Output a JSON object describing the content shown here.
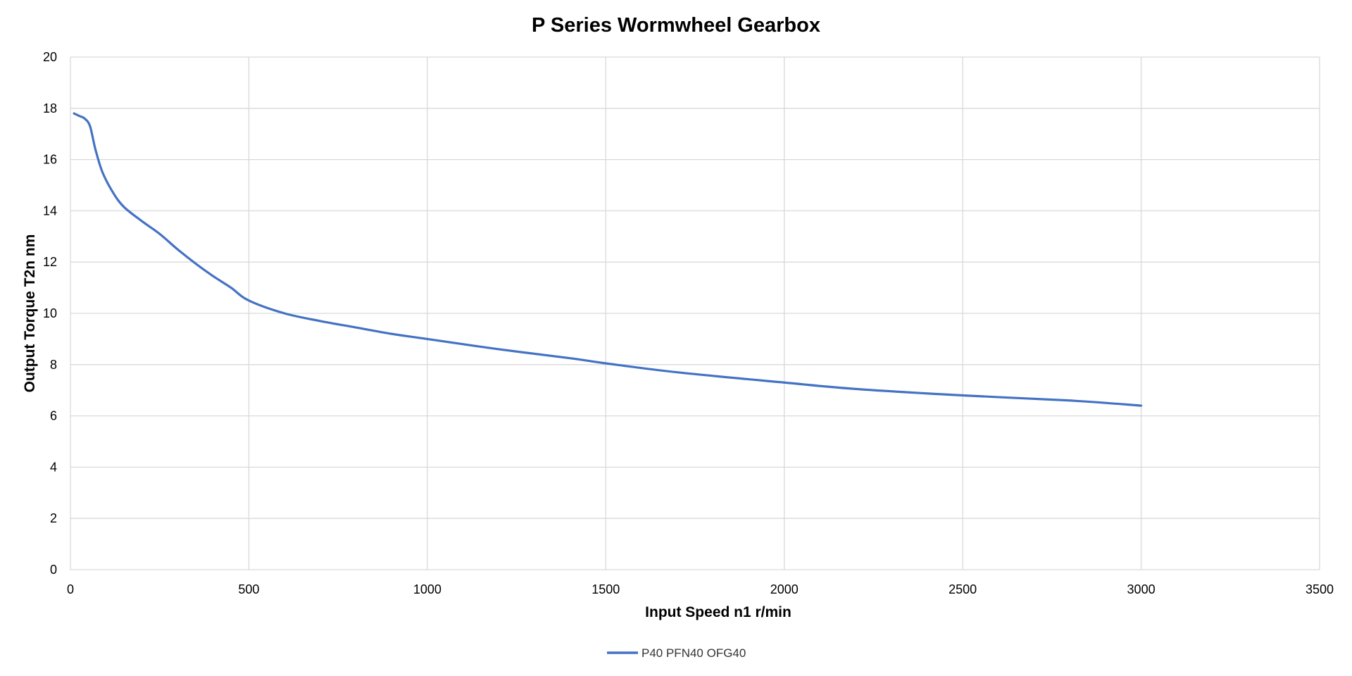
{
  "chart_data": {
    "type": "line",
    "title": "P Series Wormwheel Gearbox",
    "xlabel": "Input Speed n1 r/min",
    "ylabel": "Output Torque T2n nm",
    "xlim": [
      0,
      3500
    ],
    "ylim": [
      0,
      20
    ],
    "x_ticks": [
      0,
      500,
      1000,
      1500,
      2000,
      2500,
      3000,
      3500
    ],
    "y_ticks": [
      0,
      2,
      4,
      6,
      8,
      10,
      12,
      14,
      16,
      18,
      20
    ],
    "grid": true,
    "legend_position": "bottom",
    "series": [
      {
        "name": "P40 PFN40 OFG40",
        "color": "#4472C4",
        "points": [
          [
            10,
            17.8
          ],
          [
            25,
            17.7
          ],
          [
            40,
            17.6
          ],
          [
            55,
            17.3
          ],
          [
            70,
            16.4
          ],
          [
            90,
            15.5
          ],
          [
            120,
            14.7
          ],
          [
            150,
            14.15
          ],
          [
            200,
            13.6
          ],
          [
            250,
            13.1
          ],
          [
            300,
            12.5
          ],
          [
            350,
            11.95
          ],
          [
            400,
            11.45
          ],
          [
            450,
            11.0
          ],
          [
            500,
            10.5
          ],
          [
            600,
            10.0
          ],
          [
            700,
            9.7
          ],
          [
            800,
            9.45
          ],
          [
            900,
            9.2
          ],
          [
            1000,
            9.0
          ],
          [
            1200,
            8.6
          ],
          [
            1400,
            8.25
          ],
          [
            1500,
            8.05
          ],
          [
            1700,
            7.7
          ],
          [
            2000,
            7.3
          ],
          [
            2200,
            7.05
          ],
          [
            2500,
            6.8
          ],
          [
            2800,
            6.6
          ],
          [
            3000,
            6.4
          ]
        ]
      }
    ]
  }
}
